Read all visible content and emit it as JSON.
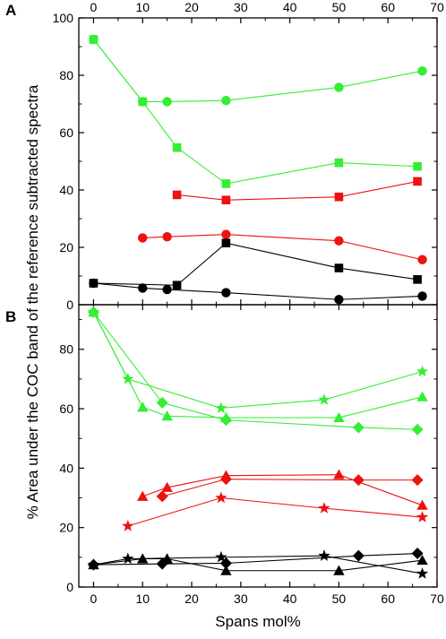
{
  "chart_data": [
    {
      "type": "line",
      "panel_label": "A",
      "xlabel": "",
      "ylabel": "",
      "xlim": [
        -3,
        70
      ],
      "ylim": [
        0,
        100
      ],
      "x_ticks": [
        0,
        10,
        20,
        30,
        40,
        50,
        60,
        70
      ],
      "y_ticks": [
        0,
        20,
        40,
        60,
        80,
        100
      ],
      "x_tick_labels": [
        "0",
        "10",
        "20",
        "30",
        "40",
        "50",
        "60",
        "70"
      ],
      "y_tick_labels": [
        "0",
        "20",
        "40",
        "60",
        "80",
        "100"
      ],
      "grid": false,
      "series": [
        {
          "color": "#33ee33",
          "marker": "circle",
          "x": [
            0,
            10,
            15,
            27,
            50,
            67
          ],
          "y": [
            92.5,
            70.8,
            70.8,
            71.2,
            75.8,
            81.5
          ]
        },
        {
          "color": "#33ee33",
          "marker": "square",
          "x": [
            0,
            10,
            17,
            27,
            50,
            66
          ],
          "y": [
            92.5,
            70.8,
            54.8,
            42.2,
            49.5,
            48.2
          ]
        },
        {
          "color": "#ee1111",
          "marker": "square",
          "x": [
            17,
            27,
            50,
            66
          ],
          "y": [
            38.3,
            36.5,
            37.6,
            43
          ]
        },
        {
          "color": "#ee1111",
          "marker": "circle",
          "x": [
            10,
            15,
            27,
            50,
            67
          ],
          "y": [
            23.3,
            23.7,
            24.5,
            22.3,
            15.7
          ]
        },
        {
          "color": "#000000",
          "marker": "square",
          "x": [
            0,
            17,
            27,
            50,
            66
          ],
          "y": [
            7.5,
            6.8,
            21.5,
            12.8,
            8.8
          ]
        },
        {
          "color": "#000000",
          "marker": "circle",
          "x": [
            0,
            10,
            15,
            27,
            50,
            67
          ],
          "y": [
            7.5,
            5.8,
            5.3,
            4.2,
            1.8,
            3
          ]
        }
      ]
    },
    {
      "type": "line",
      "panel_label": "B",
      "xlabel": "Spans mol%",
      "ylabel": "",
      "xlim": [
        -3,
        70
      ],
      "ylim": [
        0,
        95
      ],
      "x_ticks": [
        0,
        10,
        20,
        30,
        40,
        50,
        60,
        70
      ],
      "y_ticks": [
        0,
        20,
        40,
        60,
        80
      ],
      "x_tick_labels": [
        "0",
        "10",
        "20",
        "30",
        "40",
        "50",
        "60",
        "70"
      ],
      "y_tick_labels": [
        "0",
        "20",
        "40",
        "60",
        "80"
      ],
      "grid": false,
      "series": [
        {
          "color": "#33ee33",
          "marker": "star",
          "x": [
            0,
            7,
            26,
            47,
            67
          ],
          "y": [
            92.5,
            70,
            60.2,
            63,
            72.5
          ]
        },
        {
          "color": "#33ee33",
          "marker": "triangle",
          "x": [
            0,
            10,
            15,
            27,
            50,
            67
          ],
          "y": [
            92.5,
            60.5,
            57.5,
            57,
            57,
            64
          ]
        },
        {
          "color": "#33ee33",
          "marker": "diamond",
          "x": [
            0,
            14,
            27,
            54,
            66
          ],
          "y": [
            92.5,
            62,
            56.2,
            53.7,
            53
          ]
        },
        {
          "color": "#ee1111",
          "marker": "triangle",
          "x": [
            10,
            15,
            27,
            50,
            67
          ],
          "y": [
            30.5,
            33.5,
            37.5,
            37.8,
            27.5
          ]
        },
        {
          "color": "#ee1111",
          "marker": "diamond",
          "x": [
            14,
            27,
            54,
            66
          ],
          "y": [
            30.5,
            36.3,
            36,
            36
          ]
        },
        {
          "color": "#ee1111",
          "marker": "star",
          "x": [
            7,
            26,
            47,
            67
          ],
          "y": [
            20.5,
            30,
            26.5,
            23.5
          ]
        },
        {
          "color": "#000000",
          "marker": "star",
          "x": [
            0,
            7,
            26,
            47,
            67
          ],
          "y": [
            7.5,
            9.5,
            10,
            10.5,
            4.5
          ]
        },
        {
          "color": "#000000",
          "marker": "triangle",
          "x": [
            0,
            10,
            15,
            27,
            50,
            67
          ],
          "y": [
            7.5,
            9.5,
            9.5,
            5.5,
            5.5,
            9
          ]
        },
        {
          "color": "#000000",
          "marker": "diamond",
          "x": [
            0,
            14,
            27,
            54,
            66
          ],
          "y": [
            7.5,
            7.8,
            8,
            10.5,
            11.3
          ]
        }
      ]
    }
  ],
  "shared_ylabel": "% Area under the COC band of the reference subtracted spectra",
  "top_axis_tick_labels": [
    "0",
    "10",
    "20",
    "30",
    "40",
    "50",
    "60",
    "70"
  ]
}
